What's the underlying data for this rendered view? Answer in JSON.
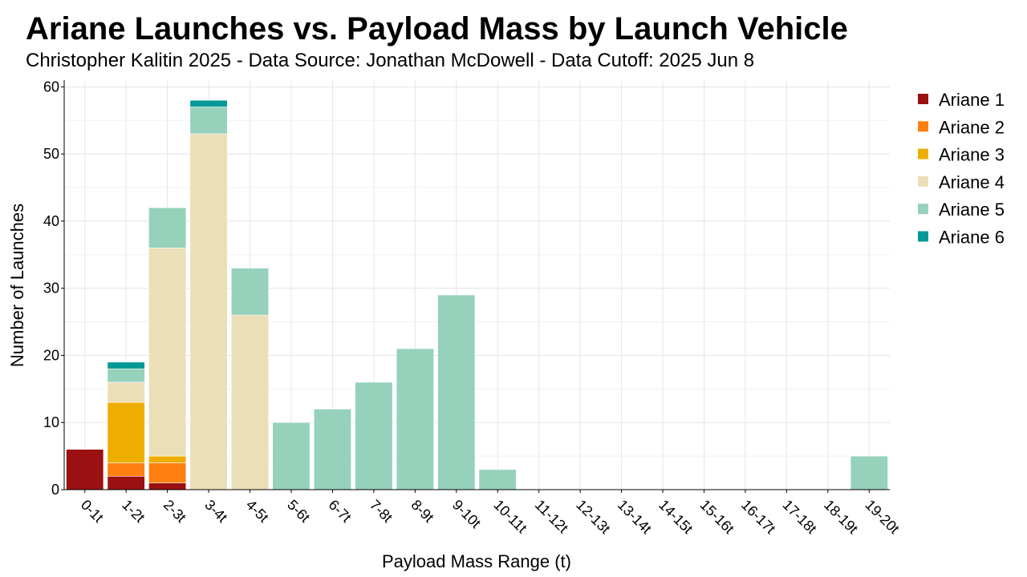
{
  "chart_data": {
    "type": "bar",
    "stacked": true,
    "title": "Ariane Launches vs. Payload Mass by Launch Vehicle",
    "subtitle": "Christopher Kalitin 2025 - Data Source: Jonathan McDowell - Data Cutoff: 2025 Jun 8",
    "xlabel": "Payload Mass Range (t)",
    "ylabel": "Number of Launches",
    "ylim": [
      0,
      61
    ],
    "yticks": [
      0,
      10,
      20,
      30,
      40,
      50,
      60
    ],
    "grid": true,
    "legend_position": "right",
    "categories": [
      "0-1t",
      "1-2t",
      "2-3t",
      "3-4t",
      "4-5t",
      "5-6t",
      "6-7t",
      "7-8t",
      "8-9t",
      "9-10t",
      "10-11t",
      "11-12t",
      "12-13t",
      "13-14t",
      "14-15t",
      "15-16t",
      "16-17t",
      "17-18t",
      "18-19t",
      "19-20t"
    ],
    "series": [
      {
        "name": "Ariane 1",
        "color": "#9b1010",
        "values": [
          6,
          2,
          1,
          0,
          0,
          0,
          0,
          0,
          0,
          0,
          0,
          0,
          0,
          0,
          0,
          0,
          0,
          0,
          0,
          0
        ]
      },
      {
        "name": "Ariane 2",
        "color": "#ff8010",
        "values": [
          0,
          2,
          3,
          0,
          0,
          0,
          0,
          0,
          0,
          0,
          0,
          0,
          0,
          0,
          0,
          0,
          0,
          0,
          0,
          0
        ]
      },
      {
        "name": "Ariane 3",
        "color": "#eeae00",
        "values": [
          0,
          9,
          1,
          0,
          0,
          0,
          0,
          0,
          0,
          0,
          0,
          0,
          0,
          0,
          0,
          0,
          0,
          0,
          0,
          0
        ]
      },
      {
        "name": "Ariane 4",
        "color": "#ebdfb8",
        "values": [
          0,
          3,
          31,
          53,
          26,
          0,
          0,
          0,
          0,
          0,
          0,
          0,
          0,
          0,
          0,
          0,
          0,
          0,
          0,
          0
        ]
      },
      {
        "name": "Ariane 5",
        "color": "#96d1bb",
        "values": [
          0,
          2,
          6,
          4,
          7,
          10,
          12,
          16,
          21,
          29,
          3,
          0,
          0,
          0,
          0,
          0,
          0,
          0,
          0,
          5
        ]
      },
      {
        "name": "Ariane 6",
        "color": "#069896",
        "values": [
          0,
          1,
          0,
          1,
          0,
          0,
          0,
          0,
          0,
          0,
          0,
          0,
          0,
          0,
          0,
          0,
          0,
          0,
          0,
          0
        ]
      }
    ]
  }
}
